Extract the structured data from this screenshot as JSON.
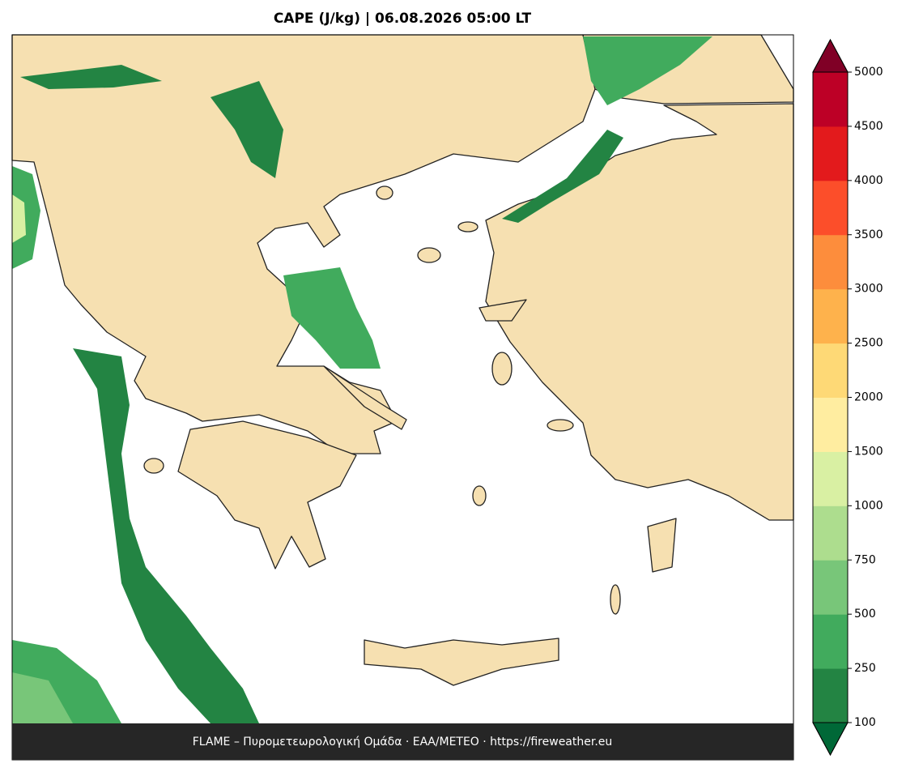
{
  "title": "CAPE (J/kg)  |  06.08.2026 05:00 LT",
  "footer": "FLAME – Πυρομετεωρολογική Ομάδα · ΕΑΑ/METEO · https://fireweather.eu",
  "colorbar": {
    "ticks": [
      100,
      250,
      500,
      750,
      1000,
      1500,
      2000,
      2500,
      3000,
      3500,
      4000,
      4500,
      5000
    ],
    "colors": [
      "#238443",
      "#41ab5d",
      "#78c679",
      "#addd8e",
      "#d9f0a3",
      "#ffeda0",
      "#fed976",
      "#feb24c",
      "#fd8d3c",
      "#fc4e2a",
      "#e31a1c",
      "#bd0026"
    ],
    "under_color": "#006837",
    "over_color": "#800026"
  }
}
